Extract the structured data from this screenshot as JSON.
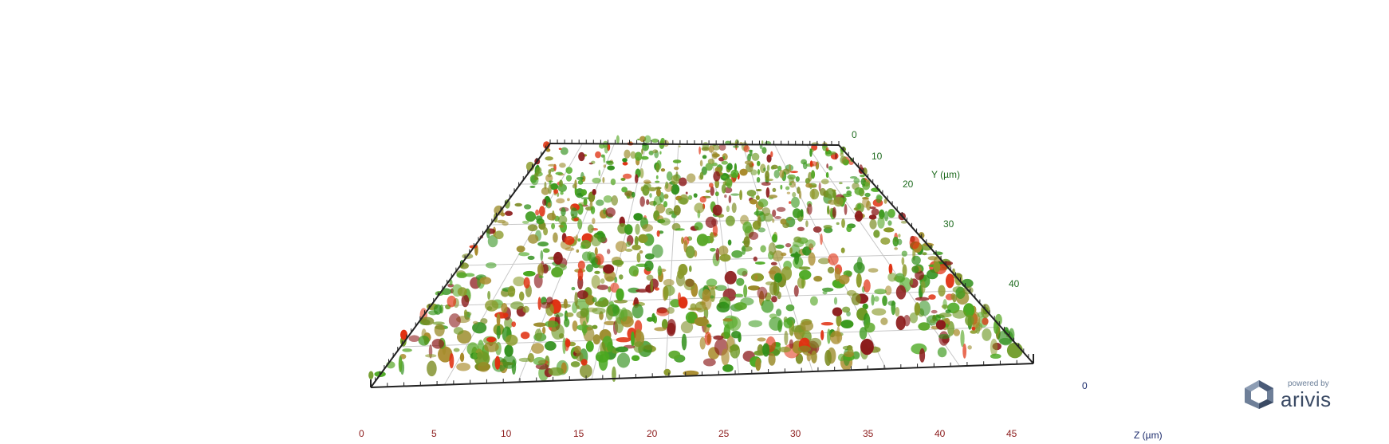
{
  "viewer": {
    "x_axis": {
      "ticks": [
        "0",
        "5",
        "10",
        "15",
        "20",
        "25",
        "30",
        "35",
        "40",
        "45"
      ]
    },
    "y_axis": {
      "title": "Y (µm)",
      "ticks": [
        "0",
        "10",
        "20",
        "30",
        "40"
      ]
    },
    "z_axis": {
      "title": "Z (µm)",
      "ticks": [
        "0"
      ]
    }
  },
  "branding": {
    "powered_by": "powered by",
    "name": "arivis"
  },
  "colors": {
    "x_ticks": "#8b1a1a",
    "y_ticks": "#1f6b1f",
    "z_ticks": "#1a2a6b",
    "volume_green": "#3c9a1e",
    "volume_olive": "#8a9a2a",
    "volume_red": "#e03010",
    "box_frame": "#222222"
  }
}
